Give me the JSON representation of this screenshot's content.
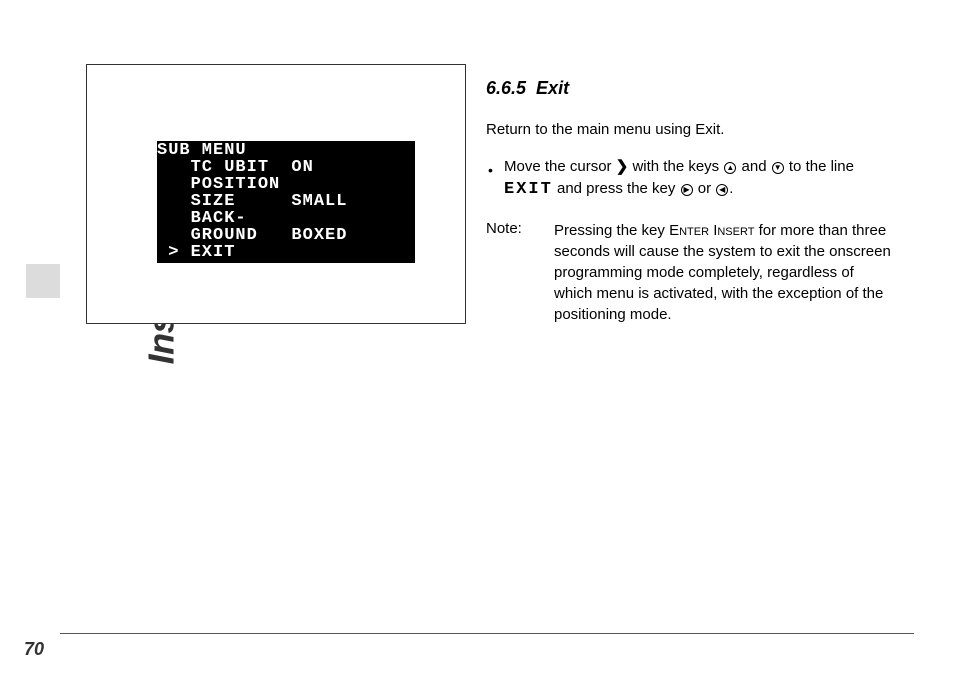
{
  "sidebar_title": "Inserter Facilities",
  "page_number": "70",
  "menu": {
    "title": "SUB MENU",
    "items": [
      {
        "label": "TC UBIT",
        "value": "ON"
      },
      {
        "label": "POSITION",
        "value": ""
      },
      {
        "label": "SIZE",
        "value": "SMALL"
      },
      {
        "label": "BACK-",
        "value": ""
      },
      {
        "label": "GROUND",
        "value": "BOXED"
      },
      {
        "label": "EXIT",
        "value": "",
        "cursor": ">"
      }
    ]
  },
  "section": {
    "number": "6.6.5",
    "title": "Exit",
    "intro": "Return to the main menu using Exit.",
    "bullet": {
      "pre": "Move the cursor ",
      "cursor_symbol": "❯",
      "mid1": " with the keys ",
      "key1": "▲",
      "and": " and ",
      "key2": "▼",
      "mid2": " to the line ",
      "mono_word": "EXIT",
      "mid3": " and press the key ",
      "key3": "▶",
      "or": " or ",
      "key4": "◀",
      "end": "."
    },
    "note": {
      "label": "Note:",
      "pre": "Pressing the key ",
      "smallcaps_1": "Enter",
      "space": " ",
      "smallcaps_2": "Insert",
      "rest": " for more than three seconds will cause the system to exit the onscreen programming mode completely, regardless of which menu is activated, with the exception of the positioning mode."
    }
  }
}
